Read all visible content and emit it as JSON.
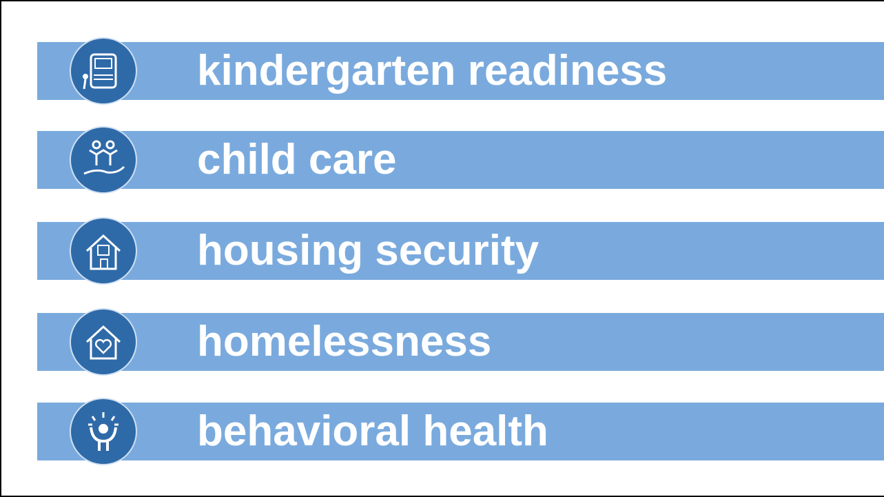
{
  "items": [
    {
      "label": "kindergarten readiness"
    },
    {
      "label": "child care"
    },
    {
      "label": "housing security"
    },
    {
      "label": "homelessness"
    },
    {
      "label": "behavioral health"
    }
  ]
}
